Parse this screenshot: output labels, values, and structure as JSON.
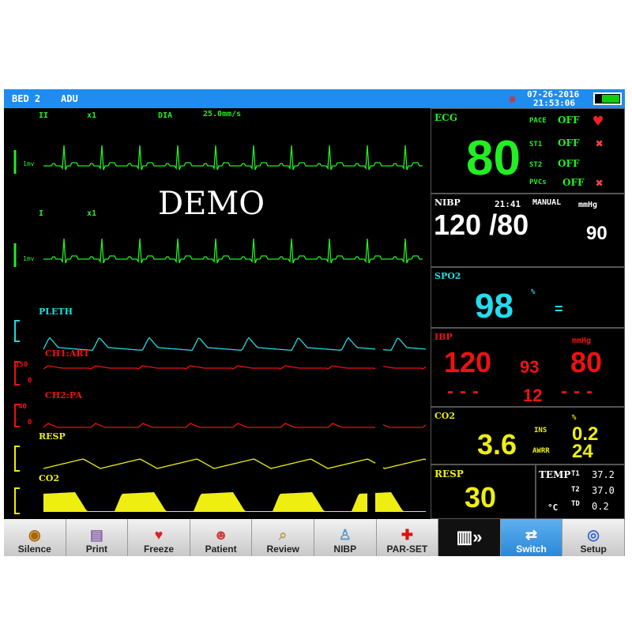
{
  "header": {
    "bed": "BED 2",
    "mode": "ADU",
    "date": "07-26-2016",
    "time": "21:53:06",
    "battery_level": 0.75
  },
  "waveforms": {
    "ecg1": {
      "lead": "II",
      "gain": "x1",
      "filter": "DIA",
      "speed": "25.0mm/s",
      "scale": "1mv"
    },
    "ecg2": {
      "lead": "I",
      "gain": "x1",
      "scale": "1mv"
    },
    "watermark": "DEMO",
    "pleth": {
      "label": "PLETH"
    },
    "art": {
      "label": "CH1:ART",
      "high": "150",
      "low": "0"
    },
    "pa": {
      "label": "CH2:PA",
      "high": "40",
      "low": "0"
    },
    "resp": {
      "label": "RESP"
    },
    "co2": {
      "label": "CO2"
    }
  },
  "ecg": {
    "title": "ECG",
    "hr": "80",
    "pace_label": "PACE",
    "pace": "OFF",
    "st1_label": "ST1",
    "st1": "OFF",
    "st2_label": "ST2",
    "st2": "OFF",
    "pvcs_label": "PVCs",
    "pvcs": "OFF"
  },
  "nibp": {
    "title": "NIBP",
    "time": "21:41",
    "mode": "MANUAL",
    "unit": "mmHg",
    "sys_dia": "120 /80",
    "mean": "90"
  },
  "spo2": {
    "title": "SPO2",
    "value": "98",
    "unit": "%",
    "indicator": "="
  },
  "ibp": {
    "title": "IBP",
    "unit": "mmHg",
    "ch1_sys": "120",
    "ch1_mean": "93",
    "ch1_dia": "80",
    "ch2_sys": "---",
    "ch2_mean": "12",
    "ch2_dia": "---"
  },
  "co2": {
    "title": "CO2",
    "value": "3.6",
    "unit": "%",
    "ins_label": "INS",
    "ins": "0.2",
    "awrr_label": "AWRR",
    "awrr": "24"
  },
  "resp": {
    "title": "RESP",
    "value": "30"
  },
  "temp": {
    "title": "TEMP",
    "unit": "°C",
    "t1_label": "T1",
    "t1": "37.2",
    "t2_label": "T2",
    "t2": "37.0",
    "td_label": "TD",
    "td": "0.2"
  },
  "toolbar": [
    "Silence",
    "Print",
    "Freeze",
    "Patient",
    "Review",
    "NIBP",
    "PAR-SET",
    "",
    "Switch",
    "Setup"
  ],
  "colors": {
    "ecg": "#22ee22",
    "pleth": "#22d8e0",
    "ibp": "#ee1111",
    "resp": "#eeee11",
    "header": "#1e8cf0",
    "nibp": "#ffffff"
  }
}
